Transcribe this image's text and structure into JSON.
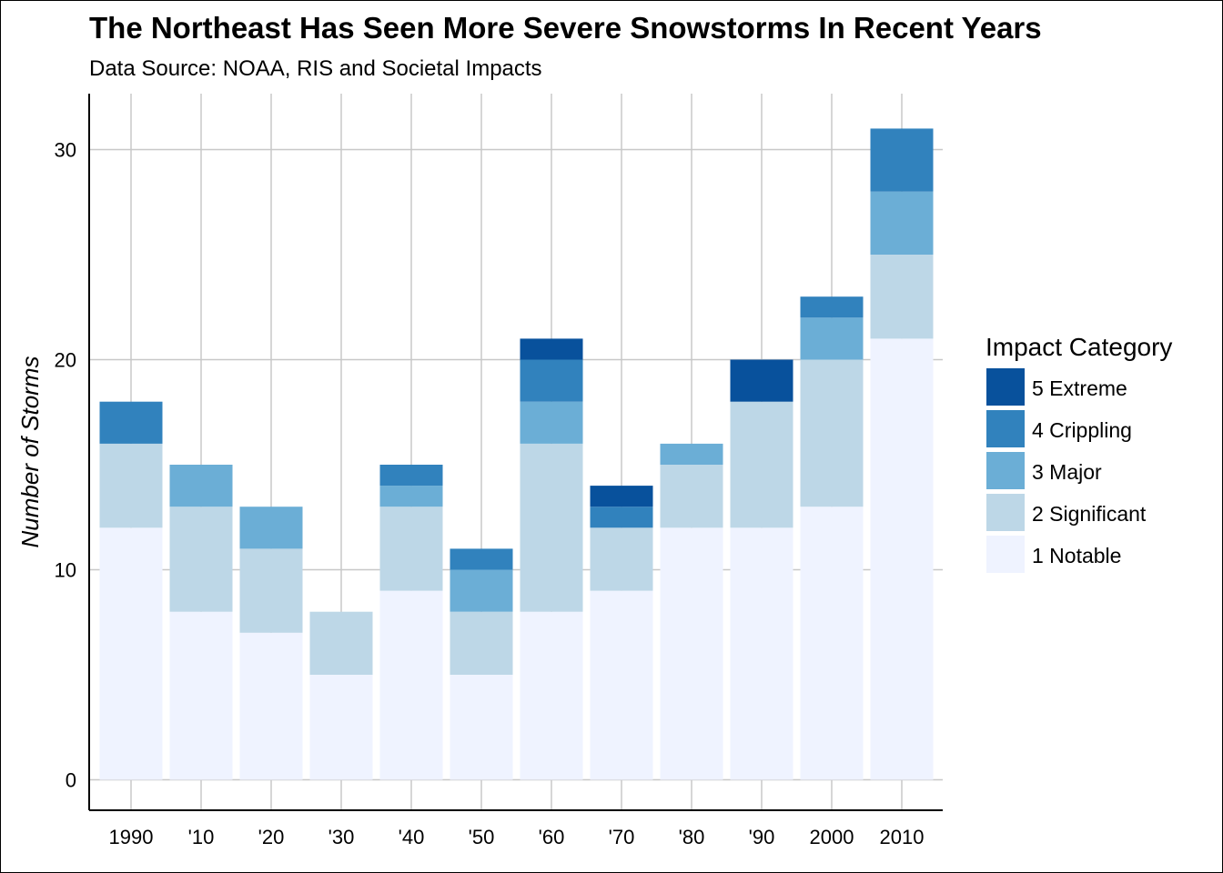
{
  "chart_data": {
    "type": "bar",
    "stacked": true,
    "title": "The Northeast Has Seen More Severe Snowstorms In Recent Years",
    "subtitle": "Data Source: NOAA, RIS and Societal Impacts",
    "xlabel": "",
    "ylabel": "Number of Storms",
    "ylim": [
      0,
      32
    ],
    "yticks": [
      0,
      10,
      20,
      30
    ],
    "grid": true,
    "categories": [
      "1990",
      "'10",
      "'20",
      "'30",
      "'40",
      "'50",
      "'60",
      "'70",
      "'80",
      "'90",
      "2000",
      "2010"
    ],
    "legend": {
      "title": "Impact Category",
      "position": "right"
    },
    "series": [
      {
        "name": "1 Notable",
        "color": "#eff3ff",
        "values": [
          12,
          8,
          7,
          5,
          9,
          5,
          8,
          9,
          12,
          12,
          13,
          21
        ]
      },
      {
        "name": "2 Significant",
        "color": "#bdd7e7",
        "values": [
          4,
          5,
          4,
          3,
          4,
          3,
          8,
          3,
          3,
          6,
          7,
          4
        ]
      },
      {
        "name": "3 Major",
        "color": "#6baed6",
        "values": [
          0,
          2,
          2,
          0,
          1,
          2,
          2,
          0,
          1,
          0,
          2,
          3
        ]
      },
      {
        "name": "4 Crippling",
        "color": "#3182bd",
        "values": [
          2,
          0,
          0,
          0,
          1,
          1,
          2,
          1,
          0,
          0,
          1,
          3
        ]
      },
      {
        "name": "5 Extreme",
        "color": "#08519c",
        "values": [
          0,
          0,
          0,
          0,
          0,
          0,
          1,
          1,
          0,
          2,
          0,
          0
        ]
      }
    ]
  }
}
